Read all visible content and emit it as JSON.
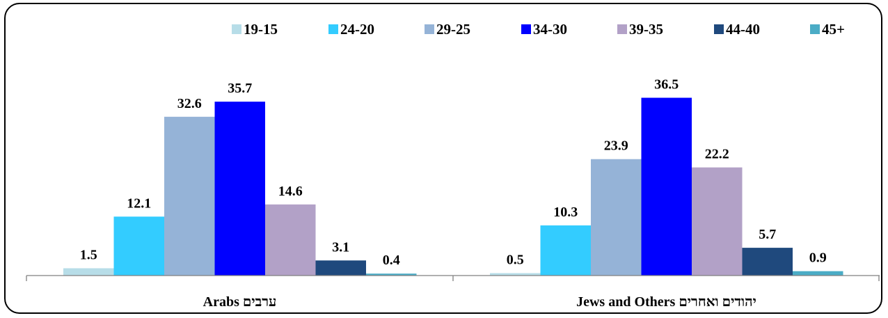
{
  "chart_data": {
    "type": "bar",
    "title": "",
    "xlabel": "",
    "ylabel": "",
    "ylim": [
      0,
      40
    ],
    "grid": false,
    "legend_position": "top",
    "categories": [
      "Arabs ערבים",
      "Jews and Others יהודים ואחרים"
    ],
    "series": [
      {
        "name": "19-15",
        "color": "#b7dde8",
        "values": [
          1.5,
          0.5
        ]
      },
      {
        "name": "24-20",
        "color": "#33ccff",
        "values": [
          12.1,
          10.3
        ]
      },
      {
        "name": "29-25",
        "color": "#95b3d7",
        "values": [
          32.6,
          23.9
        ]
      },
      {
        "name": "34-30",
        "color": "#0000ff",
        "values": [
          35.7,
          36.5
        ]
      },
      {
        "name": "39-35",
        "color": "#b2a1c7",
        "values": [
          14.6,
          22.2
        ]
      },
      {
        "name": "44-40",
        "color": "#1f497d",
        "values": [
          3.1,
          5.7
        ]
      },
      {
        "name": "45+",
        "color": "#4bacc6",
        "values": [
          0.4,
          0.9
        ]
      }
    ]
  }
}
